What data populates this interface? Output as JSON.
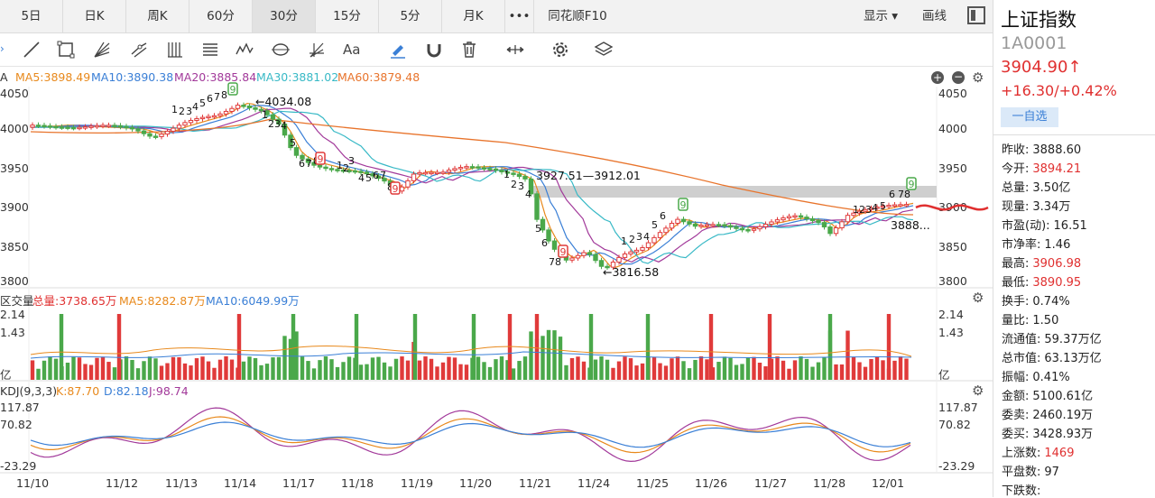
{
  "tabs": [
    "5日",
    "日K",
    "周K",
    "60分",
    "30分",
    "15分",
    "5分",
    "月K",
    "•••",
    "同花顺F10"
  ],
  "tab_active": "30分",
  "tab_right": {
    "display": "显示 ▾",
    "draw": "画线"
  },
  "main_header": {
    "prefix": "A",
    "ma5": "MA5:3898.49",
    "ma10": "MA10:3890.38",
    "ma20": "MA20:3885.84",
    "ma30": "MA30:3881.02",
    "ma60": "MA60:3879.48"
  },
  "main_y_left": [
    "4050",
    "4000",
    "3950",
    "3900",
    "3850",
    "3800"
  ],
  "main_y_right": [
    "4050",
    "4000",
    "3950",
    "3900",
    "3850",
    "3800"
  ],
  "annotations": {
    "high_label": "←4034.08",
    "low_label": "←3816.58",
    "gap_label": "3927.51—3912.01",
    "last_label": "3888..."
  },
  "vol_header": {
    "prefix": "区交量",
    "total": "总量:3738.65万",
    "ma5": "MA5:8282.87万",
    "ma10": "MA10:6049.99万"
  },
  "vol_y_left": [
    "2.14",
    "1.43",
    "亿"
  ],
  "vol_y_right": [
    "2.14",
    "1.43",
    "亿"
  ],
  "kdj_header": {
    "prefix": "KDJ(9,3,3)",
    "k": "K:87.70",
    "d": "D:82.18",
    "j": "J:98.74"
  },
  "kdj_y_left": [
    "117.87",
    "70.82",
    "-23.29"
  ],
  "kdj_y_right": [
    "117.87",
    "70.82",
    "-23.29"
  ],
  "x_labels": [
    "11/10",
    "11/12",
    "11/13",
    "11/14",
    "11/17",
    "11/18",
    "11/19",
    "11/20",
    "11/21",
    "11/24",
    "11/25",
    "11/26",
    "11/27",
    "11/28",
    "12/01"
  ],
  "panel": {
    "name": "上证指数",
    "code": "1A0001",
    "price": "3904.90↑",
    "change": "+16.30/+0.42%",
    "watch_btn": "一自选",
    "stats": [
      {
        "k": "昨收:",
        "v": "3888.60",
        "red": false
      },
      {
        "k": "今开:",
        "v": "3894.21",
        "red": true
      },
      {
        "k": "总量:",
        "v": "3.50亿",
        "red": false
      },
      {
        "k": "现量:",
        "v": "3.34万",
        "red": false
      },
      {
        "k": "市盈(动):",
        "v": "16.51",
        "red": false
      },
      {
        "k": "市净率:",
        "v": "1.46",
        "red": false
      },
      {
        "k": "最高:",
        "v": "3906.98",
        "red": true
      },
      {
        "k": "最低:",
        "v": "3890.95",
        "red": true
      },
      {
        "k": "换手:",
        "v": "0.74%",
        "red": false
      },
      {
        "k": "量比:",
        "v": "1.50",
        "red": false
      },
      {
        "k": "流通值:",
        "v": "59.37万亿",
        "red": false
      },
      {
        "k": "总市值:",
        "v": "63.13万亿",
        "red": false
      },
      {
        "k": "振幅:",
        "v": "0.41%",
        "red": false
      },
      {
        "k": "金额:",
        "v": "5100.61亿",
        "red": false
      },
      {
        "k": "委卖:",
        "v": "2460.19万",
        "red": false
      },
      {
        "k": "委买:",
        "v": "3428.93万",
        "red": false
      },
      {
        "k": "上涨数:",
        "v": "1469",
        "red": true
      },
      {
        "k": "平盘数:",
        "v": "97",
        "red": false
      },
      {
        "k": "下跌数:",
        "v": "",
        "red": false
      }
    ]
  },
  "colors": {
    "up": "#e03a3a",
    "down": "#4aa84a",
    "ma5": "#e8891c",
    "ma10": "#3a7fd6",
    "ma20": "#a2399a",
    "ma30": "#38b9c6",
    "ma60": "#e8742c",
    "text_red": "#e03030"
  }
}
